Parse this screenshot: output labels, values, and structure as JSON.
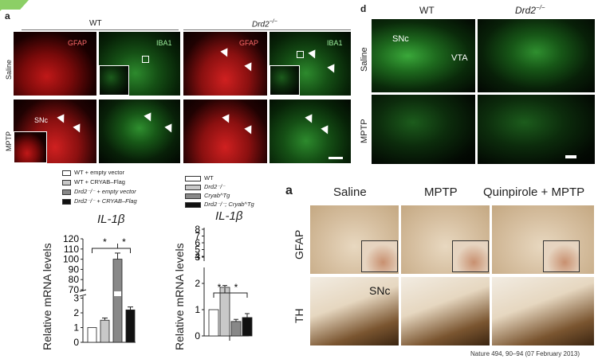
{
  "corner_tab": {
    "color": "#8ccf66"
  },
  "panel_a_top": {
    "letter": "a",
    "wt": "WT",
    "drd2": "Drd2",
    "drd2_sup": "−/−",
    "row_saline": "Saline",
    "row_mptp": "MPTP",
    "gfap": "GFAP",
    "iba1": "IBA1",
    "snc": "SNc"
  },
  "panel_d": {
    "letter": "d",
    "wt": "WT",
    "drd2": "Drd2",
    "drd2_sup": "−/−",
    "row_saline": "Saline",
    "row_mptp": "MPTP",
    "snc": "SNc",
    "vta": "VTA"
  },
  "legend_left": [
    {
      "text": "WT + empty vector",
      "color": "#ffffff"
    },
    {
      "text": "WT + CRYAB–Flag",
      "color": "#c8c8c8"
    },
    {
      "text": "Drd2⁻/⁻ + empty vector",
      "color": "#888888"
    },
    {
      "text": "Drd2⁻/⁻ + CRYAB–Flag",
      "color": "#111111"
    }
  ],
  "legend_right": [
    {
      "text": "WT",
      "color": "#ffffff"
    },
    {
      "text": "Drd2⁻/⁻",
      "color": "#c8c8c8"
    },
    {
      "text": "Cryab^Tg",
      "color": "#888888"
    },
    {
      "text": "Drd2⁻/⁻; Cryab^Tg",
      "color": "#111111"
    }
  ],
  "chart_data": [
    {
      "type": "bar",
      "title": "IL-1β",
      "ylabel": "Relative mRNA levels",
      "categories": [
        "WT + empty vector",
        "WT + CRYAB–Flag",
        "Drd2⁻/⁻ + empty vector",
        "Drd2⁻/⁻ + CRYAB–Flag"
      ],
      "values": [
        1,
        1.5,
        100,
        2.2
      ],
      "errors": [
        0,
        0.15,
        6,
        0.2
      ],
      "colors": [
        "#ffffff",
        "#c8c8c8",
        "#888888",
        "#111111"
      ],
      "yticks": [
        "0",
        "1",
        "2",
        "3",
        "70",
        "80",
        "90",
        "100",
        "110",
        "120"
      ],
      "axis_break": true,
      "significance": [
        "*",
        "*"
      ]
    },
    {
      "type": "bar",
      "title": "IL-1β",
      "ylabel": "Relative mRNA levels",
      "categories": [
        "WT",
        "Drd2⁻/⁻",
        "Cryab^Tg",
        "Drd2⁻/⁻; Cryab^Tg"
      ],
      "values": [
        1,
        1.85,
        0.55,
        0.7
      ],
      "errors": [
        0,
        0.07,
        0.08,
        0.15
      ],
      "colors": [
        "#ffffff",
        "#c8c8c8",
        "#888888",
        "#111111"
      ],
      "yticks": [
        "0",
        "1",
        "2",
        "3",
        "4",
        "5",
        "6",
        "7",
        "8"
      ],
      "axis_break": true,
      "significance": [
        "*",
        "*"
      ]
    }
  ],
  "panel_a_bottom": {
    "letter": "a",
    "col_saline": "Saline",
    "col_mptp": "MPTP",
    "col_quin": "Quinpirole + MPTP",
    "row_gfap": "GFAP",
    "row_th": "TH",
    "snc": "SNc"
  },
  "citation": "Nature 494, 90–94 (07 February 2013)"
}
